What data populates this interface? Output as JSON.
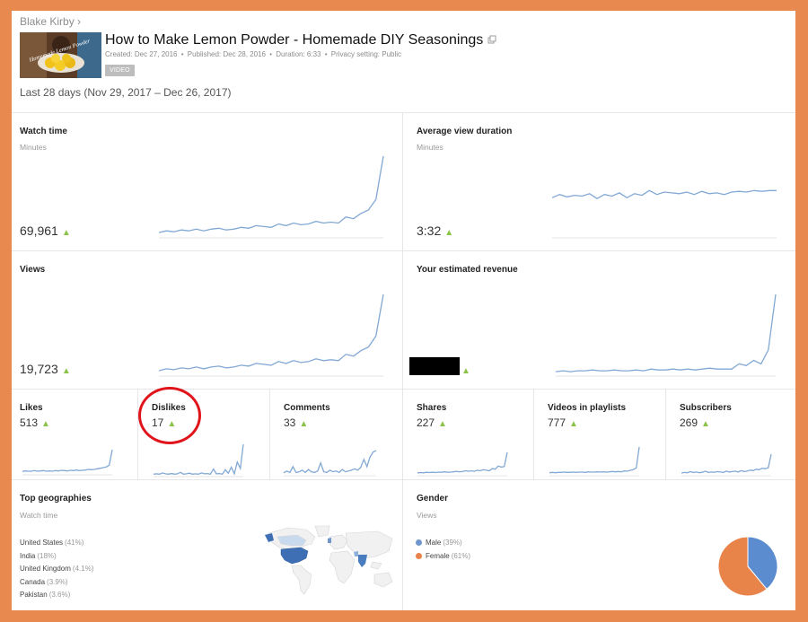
{
  "header": {
    "channel_name": "Blake Kirby",
    "channel_chevron": "›",
    "thumbnail_overlay": "Homemade Lemon Powder",
    "video_title": "How to Make Lemon Powder - Homemade DIY Seasonings",
    "created": "Created: Dec 27, 2016",
    "published": "Published: Dec 28, 2016",
    "duration": "Duration: 6:33",
    "privacy": "Privacy setting: Public",
    "separator": "•",
    "badge": "VIDEO",
    "date_range": "Last 28 days (Nov 29, 2017 – Dec 26, 2017)"
  },
  "up_arrow": "▲",
  "colors": {
    "accent_green": "#8bc34a",
    "line_blue": "#82a8d4",
    "highlight_red": "#e0151c",
    "male": "#5b8ccf",
    "female": "#e8834a",
    "frame": "#e8894f"
  },
  "metrics": {
    "watch_time": {
      "title": "Watch time",
      "sub": "Minutes",
      "value": "69,961",
      "trend": [
        4,
        6,
        5,
        7,
        6,
        8,
        6,
        8,
        9,
        7,
        8,
        10,
        9,
        12,
        11,
        10,
        14,
        12,
        15,
        13,
        14,
        17,
        15,
        16,
        15,
        22,
        20,
        26,
        30,
        42,
        92
      ]
    },
    "avg_view_duration": {
      "title": "Average view duration",
      "sub": "Minutes",
      "value": "3:32",
      "trend": [
        48,
        52,
        49,
        51,
        50,
        53,
        47,
        52,
        50,
        54,
        48,
        53,
        51,
        57,
        52,
        55,
        54,
        53,
        55,
        52,
        56,
        53,
        54,
        52,
        55,
        56,
        55,
        57,
        56,
        57,
        57
      ]
    },
    "views": {
      "title": "Views",
      "sub": "",
      "value": "19,723",
      "trend": [
        4,
        6,
        5,
        7,
        6,
        8,
        6,
        8,
        9,
        7,
        8,
        10,
        9,
        12,
        11,
        10,
        14,
        12,
        15,
        13,
        14,
        17,
        15,
        16,
        15,
        22,
        20,
        26,
        30,
        42,
        88
      ]
    },
    "estimated_revenue": {
      "title": "Your estimated revenue",
      "sub": "",
      "value": "",
      "trend": [
        3,
        4,
        3,
        4,
        4,
        5,
        4,
        4,
        5,
        4,
        4,
        5,
        4,
        6,
        5,
        5,
        6,
        5,
        6,
        5,
        6,
        7,
        6,
        6,
        6,
        12,
        10,
        16,
        12,
        28,
        92
      ]
    }
  },
  "small_metrics": [
    {
      "title": "Likes",
      "value": "513",
      "trend": [
        5,
        7,
        6,
        6,
        8,
        6,
        7,
        8,
        6,
        7,
        6,
        8,
        7,
        9,
        8,
        7,
        9,
        8,
        10,
        8,
        9,
        10,
        12,
        11,
        12,
        14,
        16,
        18,
        20,
        26,
        78
      ]
    },
    {
      "title": "Dislikes",
      "value": "17",
      "trend": [
        2,
        3,
        2,
        6,
        3,
        2,
        4,
        2,
        3,
        8,
        2,
        3,
        5,
        2,
        3,
        2,
        6,
        3,
        4,
        2,
        18,
        3,
        4,
        2,
        16,
        5,
        24,
        3,
        40,
        20,
        96
      ]
    },
    {
      "title": "Comments",
      "value": "33",
      "trend": [
        3,
        8,
        4,
        20,
        4,
        6,
        10,
        4,
        12,
        6,
        4,
        8,
        30,
        6,
        4,
        10,
        6,
        8,
        4,
        12,
        6,
        8,
        10,
        14,
        10,
        18,
        40,
        20,
        46,
        60,
        64
      ]
    },
    {
      "title": "Shares",
      "value": "227",
      "trend": [
        4,
        5,
        4,
        6,
        5,
        6,
        5,
        7,
        6,
        8,
        6,
        7,
        8,
        10,
        8,
        9,
        12,
        10,
        12,
        10,
        14,
        12,
        16,
        14,
        12,
        20,
        18,
        30,
        26,
        28,
        82
      ]
    },
    {
      "title": "Videos in playlists",
      "value": "777",
      "trend": [
        4,
        5,
        4,
        5,
        5,
        6,
        5,
        5,
        6,
        5,
        6,
        6,
        5,
        7,
        6,
        6,
        7,
        6,
        7,
        6,
        7,
        8,
        7,
        8,
        7,
        10,
        9,
        12,
        14,
        20,
        90
      ]
    },
    {
      "title": "Subscribers",
      "value": "269",
      "trend": [
        4,
        6,
        5,
        10,
        6,
        8,
        5,
        7,
        12,
        6,
        8,
        7,
        10,
        8,
        6,
        12,
        8,
        10,
        12,
        8,
        14,
        10,
        12,
        16,
        14,
        20,
        18,
        24,
        22,
        26,
        84
      ]
    }
  ],
  "geographies": {
    "title": "Top geographies",
    "sub": "Watch time",
    "items": [
      {
        "country": "United States",
        "pct": "(41%)"
      },
      {
        "country": "India",
        "pct": "(18%)"
      },
      {
        "country": "United Kingdom",
        "pct": "(4.1%)"
      },
      {
        "country": "Canada",
        "pct": "(3.9%)"
      },
      {
        "country": "Pakistan",
        "pct": "(3.6%)"
      }
    ]
  },
  "gender": {
    "title": "Gender",
    "sub": "Views",
    "items": [
      {
        "label": "Male",
        "pct": "(39%)",
        "fraction": 0.39,
        "color": "#5b8ccf"
      },
      {
        "label": "Female",
        "pct": "(61%)",
        "fraction": 0.61,
        "color": "#e8834a"
      }
    ]
  }
}
